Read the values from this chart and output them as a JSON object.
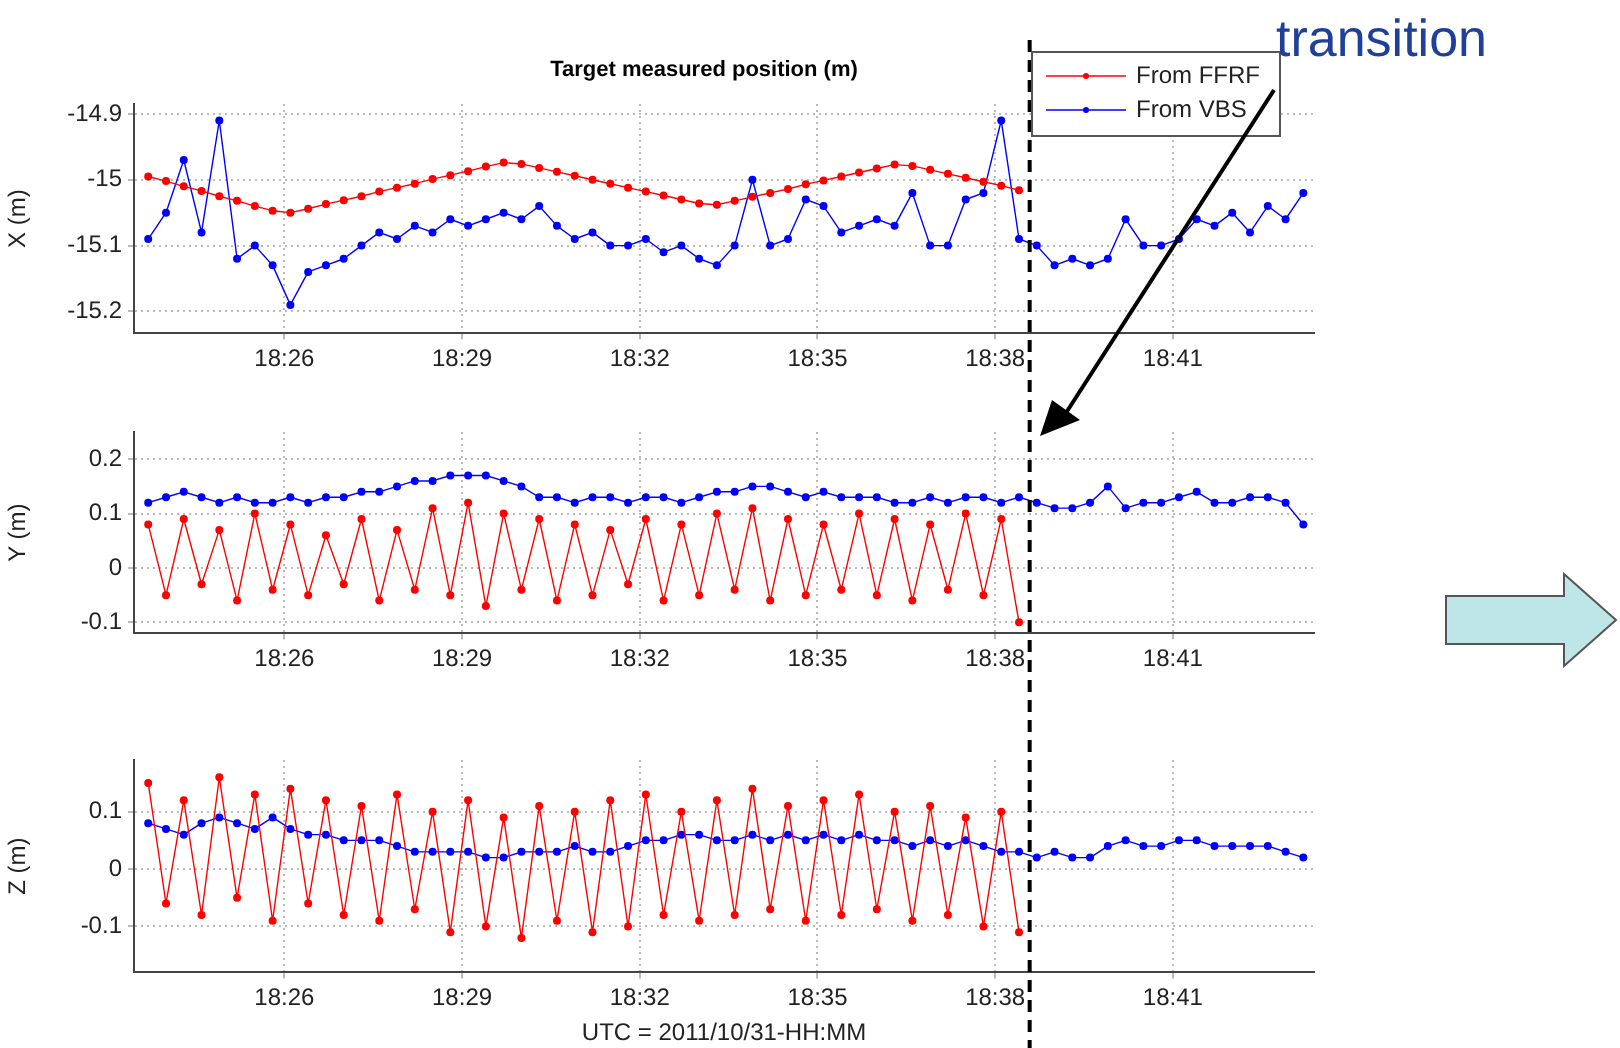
{
  "chart_data": [
    {
      "type": "line",
      "title": "Target measured position (m)",
      "ylabel": "X (m)",
      "x": [
        18.395,
        18.4,
        18.405,
        18.41,
        18.415,
        18.42,
        18.425,
        18.43,
        18.435,
        18.44,
        18.445,
        18.45,
        18.455,
        18.46,
        18.465,
        18.47,
        18.475,
        18.48,
        18.485,
        18.49,
        18.495,
        18.5,
        18.505,
        18.51,
        18.515,
        18.52,
        18.525,
        18.53,
        18.535,
        18.54,
        18.545,
        18.55,
        18.555,
        18.56,
        18.565,
        18.57,
        18.575,
        18.58,
        18.585,
        18.59,
        18.595,
        18.6,
        18.605,
        18.61,
        18.615,
        18.62,
        18.625,
        18.63,
        18.635,
        18.64,
        18.645,
        18.65,
        18.655,
        18.66,
        18.665,
        18.67,
        18.675,
        18.68,
        18.685,
        18.69,
        18.695,
        18.7,
        18.705,
        18.71,
        18.715,
        18.72
      ],
      "series": [
        {
          "name": "From FFRF",
          "color": "#ff0000",
          "values": [
            -14.995,
            -15.002,
            -15.01,
            -15.017,
            -15.025,
            -15.032,
            -15.04,
            -15.047,
            -15.05,
            -15.044,
            -15.037,
            -15.031,
            -15.025,
            -15.018,
            -15.012,
            -15.006,
            -14.999,
            -14.993,
            -14.987,
            -14.98,
            -14.974,
            -14.976,
            -14.982,
            -14.988,
            -14.994,
            -15.0,
            -15.006,
            -15.012,
            -15.018,
            -15.024,
            -15.03,
            -15.036,
            -15.038,
            -15.032,
            -15.026,
            -15.02,
            -15.014,
            -15.007,
            -15.001,
            -14.995,
            -14.989,
            -14.983,
            -14.977,
            -14.979,
            -14.985,
            -14.991,
            -14.997,
            -15.003,
            -15.009,
            -15.016,
            null,
            null,
            null,
            null,
            null,
            null,
            null,
            null,
            null,
            null,
            null,
            null,
            null,
            null,
            null,
            null
          ]
        },
        {
          "name": "From VBS",
          "color": "#0000ff",
          "values": [
            -15.09,
            -15.05,
            -14.97,
            -15.08,
            -14.91,
            -15.12,
            -15.1,
            -15.13,
            -15.19,
            -15.14,
            -15.13,
            -15.12,
            -15.1,
            -15.08,
            -15.09,
            -15.07,
            -15.08,
            -15.06,
            -15.07,
            -15.06,
            -15.05,
            -15.06,
            -15.04,
            -15.07,
            -15.09,
            -15.08,
            -15.1,
            -15.1,
            -15.09,
            -15.11,
            -15.1,
            -15.12,
            -15.13,
            -15.1,
            -15.0,
            -15.1,
            -15.09,
            -15.03,
            -15.04,
            -15.08,
            -15.07,
            -15.06,
            -15.07,
            -15.02,
            -15.1,
            -15.1,
            -15.03,
            -15.02,
            -14.91,
            -15.09,
            -15.1,
            -15.13,
            -15.12,
            -15.13,
            -15.12,
            -15.06,
            -15.1,
            -15.1,
            -15.09,
            -15.06,
            -15.07,
            -15.05,
            -15.08,
            -15.04,
            -15.06,
            -15.02
          ]
        }
      ],
      "xlim": [
        18.391,
        18.723
      ],
      "xticks": [
        {
          "value": 18.4333,
          "label": "18:26"
        },
        {
          "value": 18.4833,
          "label": "18:29"
        },
        {
          "value": 18.5333,
          "label": "18:32"
        },
        {
          "value": 18.5833,
          "label": "18:35"
        },
        {
          "value": 18.6333,
          "label": "18:38"
        },
        {
          "value": 18.6833,
          "label": "18:41"
        }
      ],
      "ylim": [
        -15.233,
        -14.885
      ],
      "yticks": [
        -15.2,
        -15.1,
        -15,
        -14.9
      ],
      "ref_lines": [
        {
          "axis": "x",
          "value": 18.643,
          "line_style": "dashed",
          "color": "#000000"
        }
      ],
      "annotations": [
        "transition"
      ],
      "grid": true,
      "legend": "top right",
      "marker": "circle",
      "line_style": "solid"
    },
    {
      "type": "line",
      "ylabel": "Y (m)",
      "x": [
        18.395,
        18.4,
        18.405,
        18.41,
        18.415,
        18.42,
        18.425,
        18.43,
        18.435,
        18.44,
        18.445,
        18.45,
        18.455,
        18.46,
        18.465,
        18.47,
        18.475,
        18.48,
        18.485,
        18.49,
        18.495,
        18.5,
        18.505,
        18.51,
        18.515,
        18.52,
        18.525,
        18.53,
        18.535,
        18.54,
        18.545,
        18.55,
        18.555,
        18.56,
        18.565,
        18.57,
        18.575,
        18.58,
        18.585,
        18.59,
        18.595,
        18.6,
        18.605,
        18.61,
        18.615,
        18.62,
        18.625,
        18.63,
        18.635,
        18.64,
        18.645,
        18.65,
        18.655,
        18.66,
        18.665,
        18.67,
        18.675,
        18.68,
        18.685,
        18.69,
        18.695,
        18.7,
        18.705,
        18.71,
        18.715,
        18.72
      ],
      "series": [
        {
          "color": "#ff0000",
          "values": [
            0.08,
            -0.05,
            0.09,
            -0.03,
            0.07,
            -0.06,
            0.1,
            -0.04,
            0.08,
            -0.05,
            0.06,
            -0.03,
            0.09,
            -0.06,
            0.07,
            -0.04,
            0.11,
            -0.05,
            0.12,
            -0.07,
            0.1,
            -0.04,
            0.09,
            -0.06,
            0.08,
            -0.05,
            0.07,
            -0.03,
            0.09,
            -0.06,
            0.08,
            -0.05,
            0.1,
            -0.04,
            0.11,
            -0.06,
            0.09,
            -0.05,
            0.08,
            -0.04,
            0.1,
            -0.05,
            0.09,
            -0.06,
            0.08,
            -0.04,
            0.1,
            -0.05,
            0.09,
            -0.1,
            null,
            null,
            null,
            null,
            null,
            null,
            null,
            null,
            null,
            null,
            null,
            null,
            null,
            null,
            null,
            null
          ]
        },
        {
          "color": "#0000ff",
          "values": [
            0.12,
            0.13,
            0.14,
            0.13,
            0.12,
            0.13,
            0.12,
            0.12,
            0.13,
            0.12,
            0.13,
            0.13,
            0.14,
            0.14,
            0.15,
            0.16,
            0.16,
            0.17,
            0.17,
            0.17,
            0.16,
            0.15,
            0.13,
            0.13,
            0.12,
            0.13,
            0.13,
            0.12,
            0.13,
            0.13,
            0.12,
            0.13,
            0.14,
            0.14,
            0.15,
            0.15,
            0.14,
            0.13,
            0.14,
            0.13,
            0.13,
            0.13,
            0.12,
            0.12,
            0.13,
            0.12,
            0.13,
            0.13,
            0.12,
            0.13,
            0.12,
            0.11,
            0.11,
            0.12,
            0.15,
            0.11,
            0.12,
            0.12,
            0.13,
            0.14,
            0.12,
            0.12,
            0.13,
            0.13,
            0.12,
            0.08
          ]
        }
      ],
      "xlim": [
        18.391,
        18.723
      ],
      "xticks": [
        {
          "value": 18.4333,
          "label": "18:26"
        },
        {
          "value": 18.4833,
          "label": "18:29"
        },
        {
          "value": 18.5333,
          "label": "18:32"
        },
        {
          "value": 18.5833,
          "label": "18:35"
        },
        {
          "value": 18.6333,
          "label": "18:38"
        },
        {
          "value": 18.6833,
          "label": "18:41"
        }
      ],
      "ylim": [
        -0.12,
        0.25
      ],
      "yticks": [
        -0.1,
        0,
        0.1,
        0.2
      ],
      "ref_lines": [
        {
          "axis": "x",
          "value": 18.643,
          "line_style": "dashed",
          "color": "#000000"
        }
      ],
      "grid": true,
      "marker": "circle",
      "line_style": "solid"
    },
    {
      "type": "line",
      "ylabel": "Z (m)",
      "xlabel": "UTC = 2011/10/31-HH:MM",
      "x": [
        18.395,
        18.4,
        18.405,
        18.41,
        18.415,
        18.42,
        18.425,
        18.43,
        18.435,
        18.44,
        18.445,
        18.45,
        18.455,
        18.46,
        18.465,
        18.47,
        18.475,
        18.48,
        18.485,
        18.49,
        18.495,
        18.5,
        18.505,
        18.51,
        18.515,
        18.52,
        18.525,
        18.53,
        18.535,
        18.54,
        18.545,
        18.55,
        18.555,
        18.56,
        18.565,
        18.57,
        18.575,
        18.58,
        18.585,
        18.59,
        18.595,
        18.6,
        18.605,
        18.61,
        18.615,
        18.62,
        18.625,
        18.63,
        18.635,
        18.64,
        18.645,
        18.65,
        18.655,
        18.66,
        18.665,
        18.67,
        18.675,
        18.68,
        18.685,
        18.69,
        18.695,
        18.7,
        18.705,
        18.71,
        18.715,
        18.72
      ],
      "series": [
        {
          "color": "#ff0000",
          "values": [
            0.15,
            -0.06,
            0.12,
            -0.08,
            0.16,
            -0.05,
            0.13,
            -0.09,
            0.14,
            -0.06,
            0.12,
            -0.08,
            0.11,
            -0.09,
            0.13,
            -0.07,
            0.1,
            -0.11,
            0.12,
            -0.1,
            0.09,
            -0.12,
            0.11,
            -0.09,
            0.1,
            -0.11,
            0.12,
            -0.1,
            0.13,
            -0.08,
            0.1,
            -0.09,
            0.12,
            -0.08,
            0.14,
            -0.07,
            0.11,
            -0.09,
            0.12,
            -0.08,
            0.13,
            -0.07,
            0.1,
            -0.09,
            0.11,
            -0.08,
            0.09,
            -0.1,
            0.1,
            -0.11,
            null,
            null,
            null,
            null,
            null,
            null,
            null,
            null,
            null,
            null,
            null,
            null,
            null,
            null,
            null,
            null
          ]
        },
        {
          "color": "#0000ff",
          "values": [
            0.08,
            0.07,
            0.06,
            0.08,
            0.09,
            0.08,
            0.07,
            0.09,
            0.07,
            0.06,
            0.06,
            0.05,
            0.05,
            0.05,
            0.04,
            0.03,
            0.03,
            0.03,
            0.03,
            0.02,
            0.02,
            0.03,
            0.03,
            0.03,
            0.04,
            0.03,
            0.03,
            0.04,
            0.05,
            0.05,
            0.06,
            0.06,
            0.05,
            0.05,
            0.06,
            0.05,
            0.06,
            0.05,
            0.06,
            0.05,
            0.06,
            0.05,
            0.05,
            0.04,
            0.05,
            0.04,
            0.05,
            0.04,
            0.03,
            0.03,
            0.02,
            0.03,
            0.02,
            0.02,
            0.04,
            0.05,
            0.04,
            0.04,
            0.05,
            0.05,
            0.04,
            0.04,
            0.04,
            0.04,
            0.03,
            0.02
          ]
        }
      ],
      "xlim": [
        18.391,
        18.723
      ],
      "xticks": [
        {
          "value": 18.4333,
          "label": "18:26"
        },
        {
          "value": 18.4833,
          "label": "18:29"
        },
        {
          "value": 18.5333,
          "label": "18:32"
        },
        {
          "value": 18.5833,
          "label": "18:35"
        },
        {
          "value": 18.6333,
          "label": "18:38"
        },
        {
          "value": 18.6833,
          "label": "18:41"
        }
      ],
      "ylim": [
        -0.18,
        0.19
      ],
      "yticks": [
        -0.1,
        0,
        0.1
      ],
      "ref_lines": [
        {
          "axis": "x",
          "value": 18.643,
          "line_style": "dashed",
          "color": "#000000"
        }
      ],
      "grid": true,
      "marker": "circle",
      "line_style": "solid"
    }
  ]
}
